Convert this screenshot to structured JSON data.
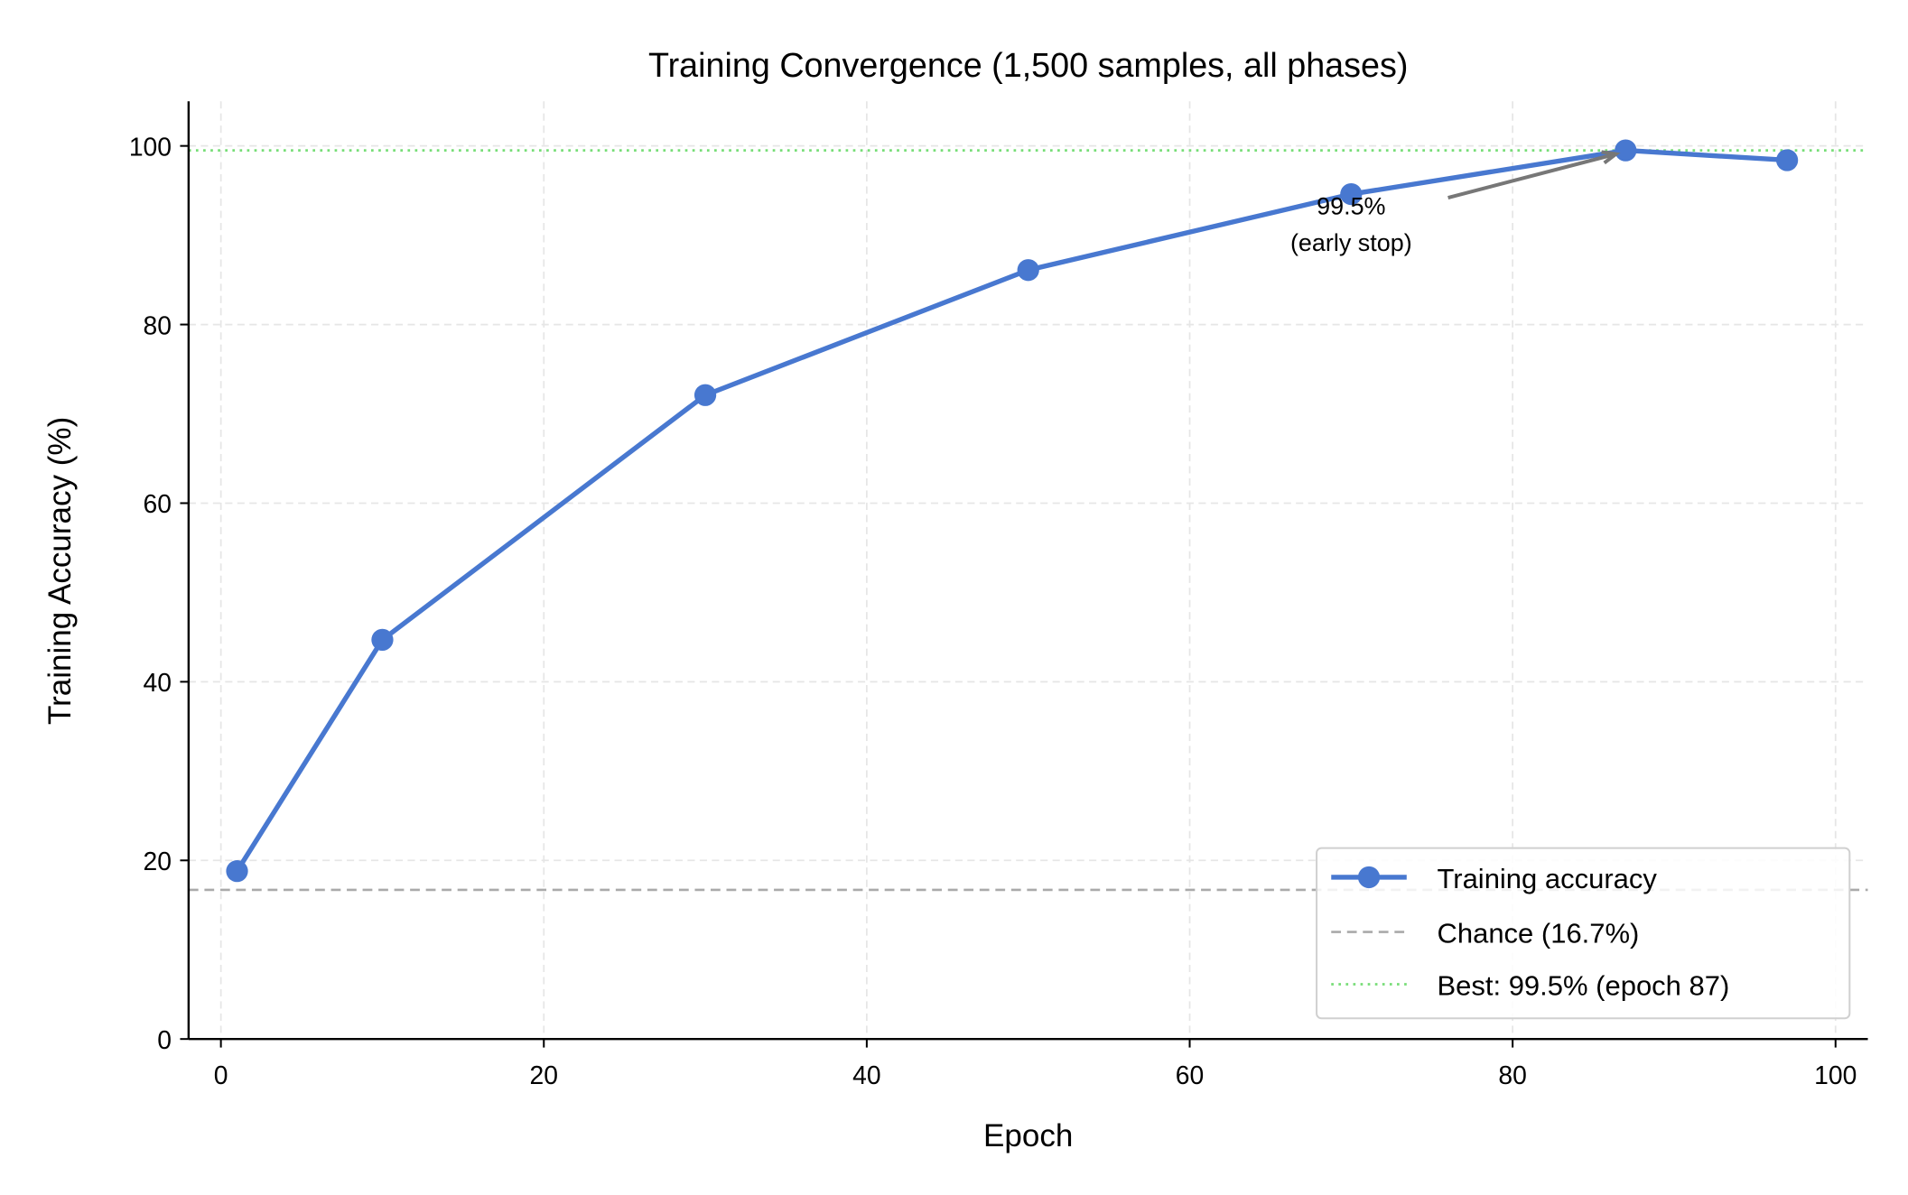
{
  "chart_data": {
    "type": "line",
    "title": "Training Convergence (1,500 samples, all phases)",
    "xlabel": "Epoch",
    "ylabel": "Training Accuracy (%)",
    "xlim": [
      -2,
      102
    ],
    "ylim": [
      0,
      105
    ],
    "xticks": [
      0,
      20,
      40,
      60,
      80,
      100
    ],
    "yticks": [
      0,
      20,
      40,
      60,
      80,
      100
    ],
    "grid": true,
    "legend_position": "lower right",
    "series": [
      {
        "name": "Training accuracy",
        "color": "#4878d0",
        "x": [
          1,
          10,
          30,
          50,
          70,
          87,
          97
        ],
        "y": [
          18.8,
          44.7,
          72.1,
          86.1,
          94.6,
          99.5,
          98.4
        ]
      }
    ],
    "reference_lines": [
      {
        "name": "Chance (16.7%)",
        "y": 16.7,
        "style": "dashed",
        "color": "#aaaaaa"
      },
      {
        "name": "Best: 99.5% (epoch 87)",
        "y": 99.5,
        "style": "dotted",
        "color": "#77dd77"
      }
    ],
    "annotation": {
      "line1": "99.5%",
      "line2": "(early stop)",
      "text_at": [
        70,
        93
      ],
      "arrow_from": [
        76,
        94.2
      ],
      "points_to": [
        87,
        99.5
      ],
      "color": "#777777"
    }
  }
}
